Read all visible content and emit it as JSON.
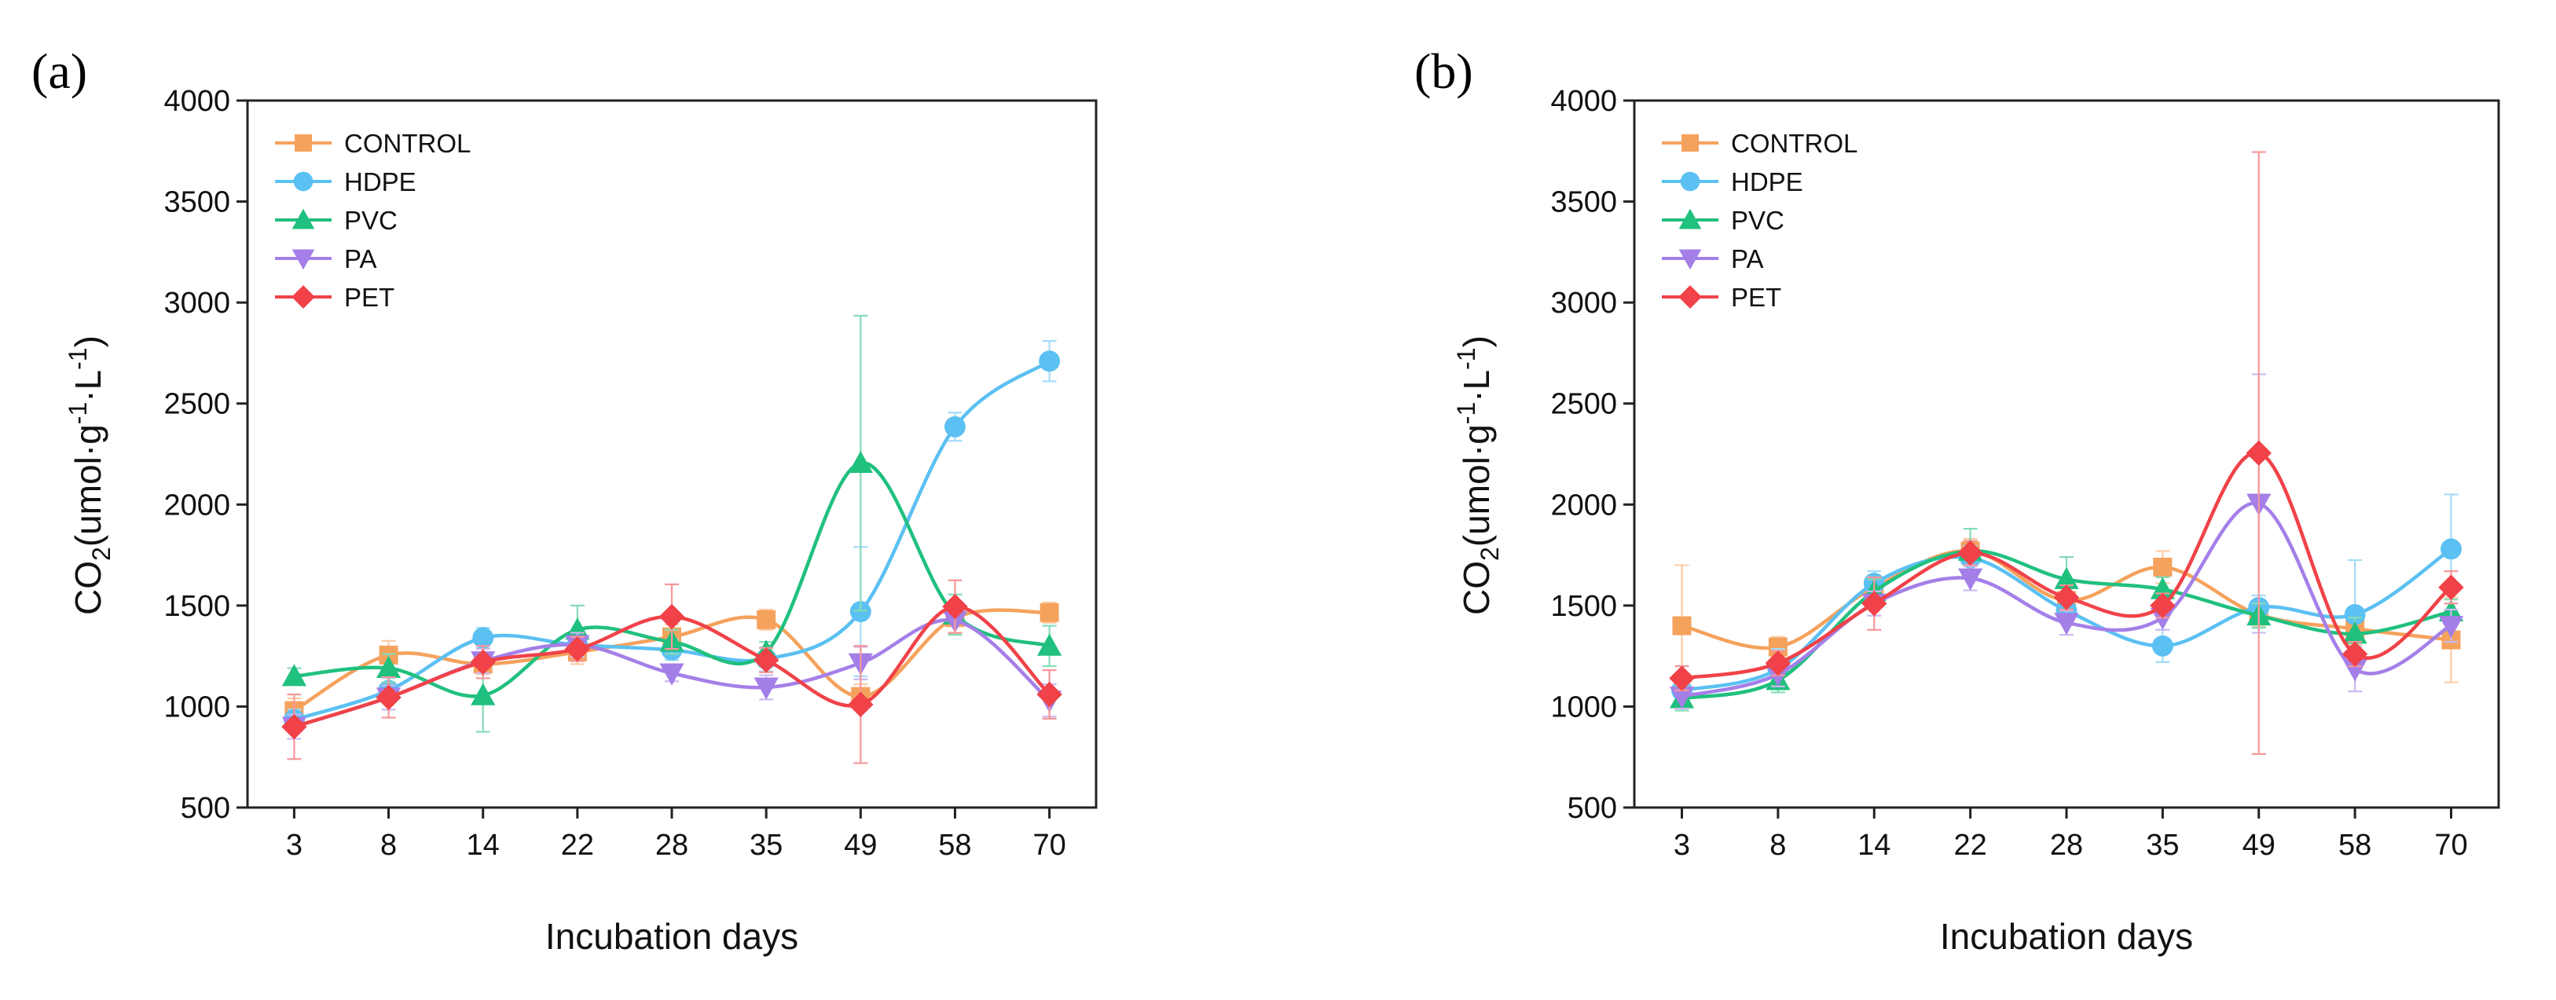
{
  "chart_data": [
    {
      "panel_label": "(a)",
      "type": "line",
      "smooth": true,
      "categories": [
        "3",
        "8",
        "14",
        "22",
        "28",
        "35",
        "49",
        "58",
        "70"
      ],
      "xlabel": "Incubation days",
      "ylabel": "CO",
      "ylabel_sub": "2",
      "ylabel_rest": "(umol·g",
      "ylabel_sup1": "-1",
      "ylabel_mid": "·L",
      "ylabel_sup2": "-1",
      "ylabel_end": ")",
      "ylim": [
        500,
        4000
      ],
      "yticks": [
        500,
        1000,
        1500,
        2000,
        2500,
        3000,
        3500,
        4000
      ],
      "legend_position": "top-left",
      "series": [
        {
          "name": "CONTROL",
          "color": "#f5a25d",
          "marker": "square",
          "values": [
            980,
            1255,
            1210,
            1270,
            1345,
            1430,
            1050,
            1440,
            1465
          ],
          "errors": [
            60,
            70,
            50,
            60,
            60,
            50,
            60,
            80,
            50
          ]
        },
        {
          "name": "HDPE",
          "color": "#5bc0f2",
          "marker": "circle",
          "values": [
            935,
            1080,
            1340,
            1305,
            1280,
            1235,
            1470,
            2385,
            2710
          ],
          "errors": [
            50,
            60,
            50,
            60,
            50,
            60,
            320,
            70,
            100
          ]
        },
        {
          "name": "PVC",
          "color": "#20c07e",
          "marker": "triangle-up",
          "values": [
            1150,
            1190,
            1055,
            1380,
            1320,
            1270,
            2205,
            1455,
            1300
          ],
          "errors": [
            40,
            70,
            180,
            120,
            60,
            50,
            730,
            100,
            100
          ]
        },
        {
          "name": "PA",
          "color": "#a47fe8",
          "marker": "triangle-down",
          "values": [
            900,
            1045,
            1225,
            1305,
            1165,
            1095,
            1215,
            1425,
            1030
          ],
          "errors": [
            60,
            60,
            60,
            60,
            40,
            60,
            80,
            60,
            80
          ]
        },
        {
          "name": "PET",
          "color": "#f04248",
          "marker": "diamond",
          "values": [
            900,
            1045,
            1220,
            1285,
            1445,
            1230,
            1010,
            1495,
            1060
          ],
          "errors": [
            160,
            100,
            80,
            60,
            160,
            60,
            290,
            130,
            120
          ]
        }
      ]
    },
    {
      "panel_label": "(b)",
      "type": "line",
      "smooth": true,
      "categories": [
        "3",
        "8",
        "14",
        "22",
        "28",
        "35",
        "49",
        "58",
        "70"
      ],
      "xlabel": "Incubation days",
      "ylabel": "CO",
      "ylabel_sub": "2",
      "ylabel_rest": "(umol·g",
      "ylabel_sup1": "-1",
      "ylabel_mid": "·L",
      "ylabel_sup2": "-1",
      "ylabel_end": ")",
      "ylim": [
        500,
        4000
      ],
      "yticks": [
        500,
        1000,
        1500,
        2000,
        2500,
        3000,
        3500,
        4000
      ],
      "legend_position": "top-left",
      "series": [
        {
          "name": "CONTROL",
          "color": "#f5a25d",
          "marker": "square",
          "values": [
            1400,
            1295,
            1590,
            1770,
            1525,
            1690,
            1455,
            1385,
            1330
          ],
          "errors": [
            300,
            50,
            60,
            60,
            60,
            80,
            60,
            80,
            210
          ]
        },
        {
          "name": "HDPE",
          "color": "#5bc0f2",
          "marker": "circle",
          "values": [
            1080,
            1185,
            1610,
            1735,
            1475,
            1300,
            1490,
            1455,
            1780
          ],
          "errors": [
            80,
            100,
            60,
            60,
            60,
            80,
            60,
            270,
            270
          ]
        },
        {
          "name": "PVC",
          "color": "#20c07e",
          "marker": "triangle-up",
          "values": [
            1040,
            1130,
            1570,
            1770,
            1630,
            1580,
            1450,
            1360,
            1470
          ],
          "errors": [
            60,
            60,
            60,
            110,
            110,
            60,
            60,
            80,
            60
          ]
        },
        {
          "name": "PA",
          "color": "#a47fe8",
          "marker": "triangle-down",
          "values": [
            1050,
            1160,
            1510,
            1635,
            1415,
            1440,
            2005,
            1185,
            1400
          ],
          "errors": [
            60,
            60,
            60,
            60,
            60,
            60,
            640,
            110,
            80
          ]
        },
        {
          "name": "PET",
          "color": "#f04248",
          "marker": "diamond",
          "values": [
            1140,
            1215,
            1510,
            1760,
            1540,
            1500,
            2255,
            1260,
            1590
          ],
          "errors": [
            60,
            60,
            130,
            60,
            60,
            60,
            1490,
            60,
            80
          ]
        }
      ]
    }
  ]
}
